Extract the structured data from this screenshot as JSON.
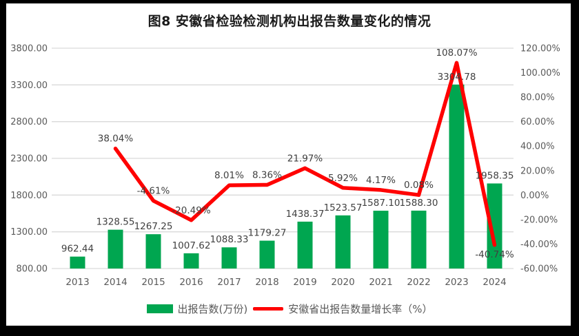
{
  "title": "图8   安徽省检验检测机构出报告数量变化的情况",
  "chart_data": {
    "type": "combo-bar-line",
    "categories": [
      "2013",
      "2014",
      "2015",
      "2016",
      "2017",
      "2018",
      "2019",
      "2020",
      "2021",
      "2022",
      "2023",
      "2024"
    ],
    "series": [
      {
        "name": "出报告数(万份)",
        "type": "bar",
        "axis": "left",
        "color": "#00A650",
        "values": [
          962.44,
          1328.55,
          1267.25,
          1007.62,
          1088.33,
          1179.27,
          1438.37,
          1523.57,
          1587.1,
          1588.3,
          3304.78,
          1958.35
        ]
      },
      {
        "name": "安徽省出报告数量增长率（%）",
        "type": "line",
        "axis": "right",
        "color": "#FF0000",
        "values": [
          null,
          38.04,
          -4.61,
          -20.49,
          8.01,
          8.36,
          21.97,
          5.92,
          4.17,
          0.08,
          108.07,
          -40.74
        ]
      }
    ],
    "left_axis": {
      "min": 800,
      "max": 3800,
      "step": 500,
      "tick_labels": [
        "800.00",
        "1300.00",
        "1800.00",
        "2300.00",
        "2800.00",
        "3300.00",
        "3800.00"
      ]
    },
    "right_axis": {
      "min": -60,
      "max": 120,
      "step": 20,
      "tick_labels": [
        "-60.00%",
        "-40.00%",
        "-20.00%",
        "0.00%",
        "20.00%",
        "40.00%",
        "60.00%",
        "80.00%",
        "100.00%",
        "120.00%"
      ]
    },
    "grid": "horizontal",
    "legend_position": "bottom",
    "colors": {
      "grid": "#D9D9D9",
      "axis_text": "#595959",
      "label_text": "#404040",
      "bar": "#00A650",
      "line": "#FF0000"
    }
  },
  "legend": {
    "items": [
      {
        "label": "出报告数(万份)",
        "color": "#00A650",
        "marker": "bar"
      },
      {
        "label": "安徽省出报告数量增长率（%）",
        "color": "#FF0000",
        "marker": "line"
      }
    ]
  }
}
